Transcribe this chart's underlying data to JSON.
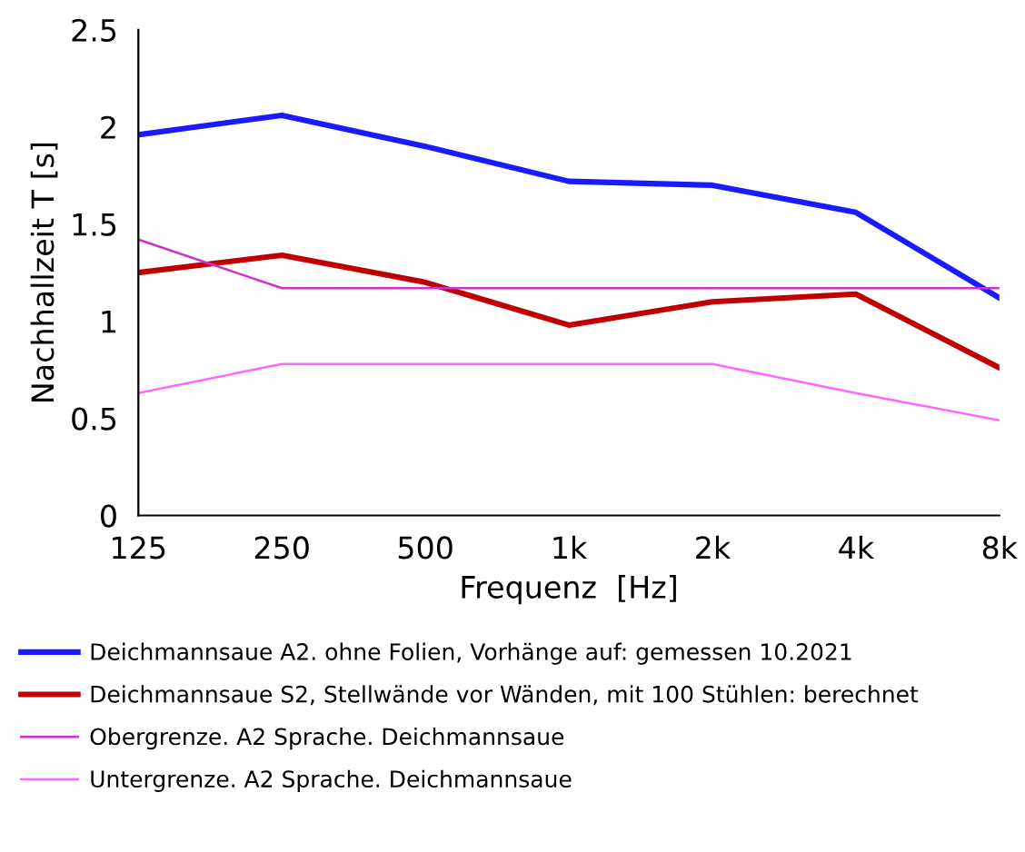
{
  "chart_data": {
    "type": "line",
    "xlabel": "Frequenz  [Hz]",
    "ylabel": "Nachhallzeit T [s]",
    "categories": [
      "125",
      "250",
      "500",
      "1k",
      "2k",
      "4k",
      "8k"
    ],
    "series": [
      {
        "name": "Deichmannsaue A2. ohne Folien, Vorhänge auf: gemessen 10.2021",
        "color": "#1a1aff",
        "values": [
          1.96,
          2.06,
          1.9,
          1.72,
          1.7,
          1.56,
          1.12
        ]
      },
      {
        "name": "Deichmannsaue S2, Stellwände vor Wänden, mit 100 Stühlen: berechnet",
        "color": "#c00000",
        "values": [
          1.25,
          1.34,
          1.2,
          0.98,
          1.1,
          1.14,
          0.76
        ]
      },
      {
        "name": "Obergrenze. A2 Sprache. Deichmannsaue",
        "color": "#cc33cc",
        "values": [
          1.42,
          1.17,
          1.17,
          1.17,
          1.17,
          1.17,
          1.17
        ]
      },
      {
        "name": "Untergrenze. A2 Sprache. Deichmannsaue",
        "color": "#ff66ff",
        "values": [
          0.63,
          0.78,
          0.78,
          0.78,
          0.78,
          0.63,
          0.49
        ]
      }
    ],
    "ylim": [
      0,
      2.5
    ],
    "yticks": [
      0,
      0.5,
      1,
      1.5,
      2,
      2.5
    ],
    "legend": "bottom",
    "grid": false,
    "marker": "none",
    "line_style": "solid"
  }
}
